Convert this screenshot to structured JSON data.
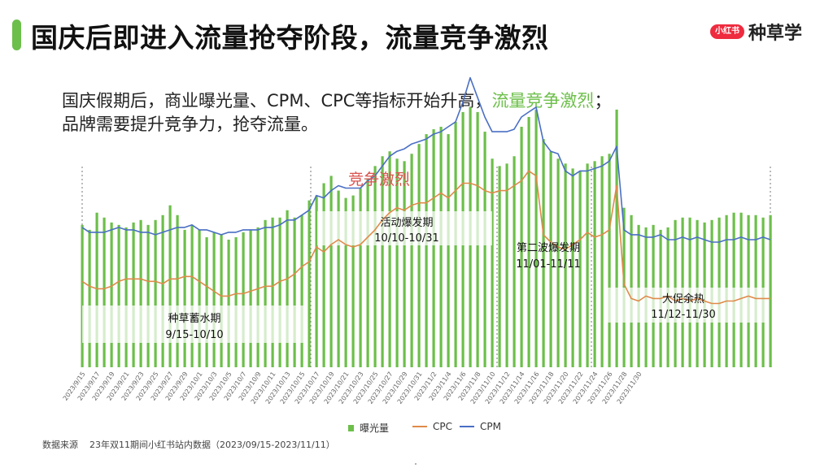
{
  "slide": {
    "title": "国庆后即进入流量抢夺阶段，流量竞争激烈",
    "brand_logo": "小红书",
    "brand_name": "种草学",
    "subtitle_line1_pre": "国庆假期后，商业曝光量、CPM、CPC等指标开始升高，",
    "subtitle_line1_highlight": "流量竞争激烈",
    "subtitle_line1_post": "；",
    "subtitle_line2": "品牌需要提升竞争力，抢夺流量。",
    "source_label": "数据来源",
    "source_text": "23年双11期间小红书站内数据（2023/09/15-2023/11/11）"
  },
  "colors": {
    "accent": "#6cbf4a",
    "bar": "#6cbf4a",
    "cpc": "#e08a4a",
    "cpm": "#4a6fc4",
    "annotation": "#d9534f",
    "brand": "#ef2b3f"
  },
  "chart_data": {
    "type": "bar+line",
    "x_tick_labels": [
      "2023/9/15",
      "2023/9/17",
      "2023/9/19",
      "2023/9/21",
      "2023/9/23",
      "2023/9/25",
      "2023/9/27",
      "2023/9/29",
      "2023/10/1",
      "2023/10/3",
      "2023/10/5",
      "2023/10/7",
      "2023/10/9",
      "2023/10/11",
      "2023/10/13",
      "2023/10/15",
      "2023/10/17",
      "2023/10/19",
      "2023/10/21",
      "2023/10/23",
      "2023/10/25",
      "2023/10/27",
      "2023/10/29",
      "2023/10/31",
      "2023/11/2",
      "2023/11/4",
      "2023/11/6",
      "2023/11/8",
      "2023/11/10",
      "2023/11/12",
      "2023/11/14",
      "2023/11/16",
      "2023/11/18",
      "2023/11/20",
      "2023/11/22",
      "2023/11/24",
      "2023/11/26",
      "2023/11/28",
      "2023/11/30"
    ],
    "y_axis_labels_shown": false,
    "series": [
      {
        "name": "曝光量",
        "type": "bar",
        "values": [
          0.58,
          0.56,
          0.63,
          0.61,
          0.59,
          0.58,
          0.57,
          0.59,
          0.6,
          0.58,
          0.6,
          0.62,
          0.66,
          0.62,
          0.56,
          0.58,
          0.56,
          0.53,
          0.55,
          0.54,
          0.52,
          0.53,
          0.55,
          0.56,
          0.57,
          0.6,
          0.61,
          0.61,
          0.64,
          0.61,
          0.62,
          0.68,
          0.7,
          0.75,
          0.78,
          0.72,
          0.69,
          0.7,
          0.73,
          0.77,
          0.82,
          0.86,
          0.88,
          0.85,
          0.84,
          0.87,
          0.91,
          0.95,
          0.97,
          0.98,
          0.95,
          1.0,
          1.04,
          1.06,
          1.04,
          0.96,
          0.85,
          0.82,
          0.83,
          0.86,
          0.98,
          1.02,
          1.05,
          0.93,
          0.88,
          0.85,
          0.83,
          0.81,
          0.8,
          0.83,
          0.84,
          0.86,
          0.87,
          1.05,
          0.65,
          0.62,
          0.58,
          0.57,
          0.58,
          0.56,
          0.57,
          0.6,
          0.61,
          0.61,
          0.6,
          0.59,
          0.6,
          0.61,
          0.62,
          0.63,
          0.63,
          0.62,
          0.62,
          0.61,
          0.62
        ]
      },
      {
        "name": "CPC",
        "type": "line",
        "values": [
          0.35,
          0.33,
          0.32,
          0.32,
          0.33,
          0.35,
          0.36,
          0.36,
          0.36,
          0.35,
          0.35,
          0.34,
          0.36,
          0.36,
          0.37,
          0.37,
          0.35,
          0.33,
          0.31,
          0.29,
          0.29,
          0.3,
          0.3,
          0.31,
          0.32,
          0.33,
          0.33,
          0.35,
          0.36,
          0.38,
          0.41,
          0.43,
          0.49,
          0.47,
          0.5,
          0.52,
          0.5,
          0.49,
          0.5,
          0.53,
          0.56,
          0.6,
          0.63,
          0.65,
          0.64,
          0.66,
          0.67,
          0.67,
          0.69,
          0.71,
          0.69,
          0.72,
          0.75,
          0.75,
          0.74,
          0.72,
          0.71,
          0.72,
          0.72,
          0.74,
          0.76,
          0.8,
          0.78,
          0.54,
          0.51,
          0.49,
          0.48,
          0.5,
          0.52,
          0.55,
          0.53,
          0.54,
          0.56,
          0.74,
          0.34,
          0.28,
          0.27,
          0.29,
          0.28,
          0.28,
          0.29,
          0.27,
          0.28,
          0.27,
          0.28,
          0.27,
          0.26,
          0.26,
          0.27,
          0.27,
          0.28,
          0.29,
          0.28,
          0.28,
          0.28
        ]
      },
      {
        "name": "CPM",
        "type": "line",
        "values": [
          0.57,
          0.55,
          0.55,
          0.55,
          0.56,
          0.57,
          0.56,
          0.56,
          0.55,
          0.55,
          0.54,
          0.55,
          0.56,
          0.57,
          0.57,
          0.58,
          0.56,
          0.56,
          0.55,
          0.54,
          0.55,
          0.55,
          0.56,
          0.56,
          0.56,
          0.57,
          0.57,
          0.58,
          0.6,
          0.6,
          0.62,
          0.64,
          0.7,
          0.69,
          0.72,
          0.74,
          0.73,
          0.73,
          0.73,
          0.76,
          0.78,
          0.82,
          0.86,
          0.88,
          0.89,
          0.91,
          0.92,
          0.93,
          0.95,
          0.96,
          0.98,
          1.0,
          1.08,
          1.18,
          1.1,
          1.02,
          0.96,
          0.96,
          0.96,
          0.97,
          1.02,
          1.04,
          1.06,
          0.92,
          0.88,
          0.87,
          0.8,
          0.78,
          0.8,
          0.8,
          0.81,
          0.82,
          0.84,
          0.9,
          0.56,
          0.54,
          0.54,
          0.53,
          0.53,
          0.54,
          0.52,
          0.52,
          0.53,
          0.52,
          0.53,
          0.52,
          0.51,
          0.51,
          0.52,
          0.52,
          0.53,
          0.52,
          0.52,
          0.53,
          0.52
        ]
      }
    ],
    "phases": [
      {
        "label": "种草蓄水期",
        "range": "9/15-10/10"
      },
      {
        "label": "活动爆发期",
        "range": "10/10-10/31"
      },
      {
        "label": "第二波爆发期",
        "range": "11/01-11/11"
      },
      {
        "label": "大促余热",
        "range": "11/12-11/30"
      }
    ],
    "annotation": "竞争激烈",
    "legend": [
      {
        "name": "曝光量",
        "color": "#6cbf4a",
        "type": "bar"
      },
      {
        "name": "CPC",
        "color": "#e08a4a",
        "type": "line"
      },
      {
        "name": "CPM",
        "color": "#4a6fc4",
        "type": "line"
      }
    ],
    "legend_position": "bottom",
    "grid": false
  }
}
